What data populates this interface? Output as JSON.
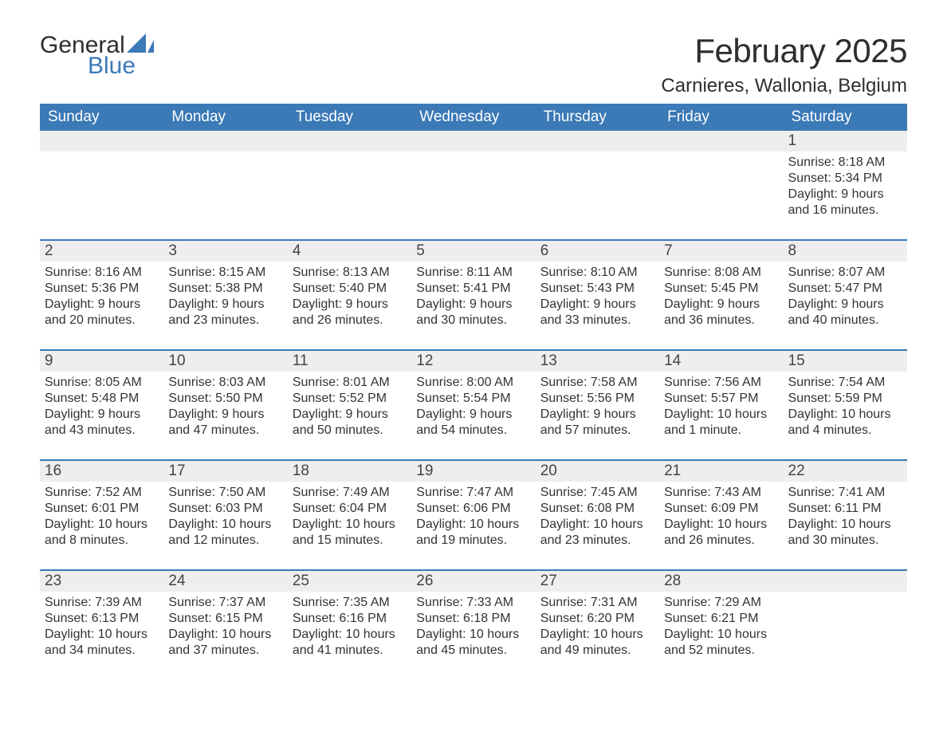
{
  "brand": {
    "word1": "General",
    "word2": "Blue",
    "accent_color": "#3b79b7",
    "text_color": "#2e2e2e"
  },
  "title": "February 2025",
  "location": "Carnieres, Wallonia, Belgium",
  "colors": {
    "header_bg": "#3b79b7",
    "header_text": "#ffffff",
    "daynum_bg": "#eeeeee",
    "row_divider": "#3b79b7",
    "body_text": "#333333",
    "page_bg": "#ffffff"
  },
  "weekdays": [
    "Sunday",
    "Monday",
    "Tuesday",
    "Wednesday",
    "Thursday",
    "Friday",
    "Saturday"
  ],
  "weeks": [
    [
      {
        "day": ""
      },
      {
        "day": ""
      },
      {
        "day": ""
      },
      {
        "day": ""
      },
      {
        "day": ""
      },
      {
        "day": ""
      },
      {
        "day": "1",
        "sunrise": "Sunrise: 8:18 AM",
        "sunset": "Sunset: 5:34 PM",
        "dl1": "Daylight: 9 hours",
        "dl2": "and 16 minutes."
      }
    ],
    [
      {
        "day": "2",
        "sunrise": "Sunrise: 8:16 AM",
        "sunset": "Sunset: 5:36 PM",
        "dl1": "Daylight: 9 hours",
        "dl2": "and 20 minutes."
      },
      {
        "day": "3",
        "sunrise": "Sunrise: 8:15 AM",
        "sunset": "Sunset: 5:38 PM",
        "dl1": "Daylight: 9 hours",
        "dl2": "and 23 minutes."
      },
      {
        "day": "4",
        "sunrise": "Sunrise: 8:13 AM",
        "sunset": "Sunset: 5:40 PM",
        "dl1": "Daylight: 9 hours",
        "dl2": "and 26 minutes."
      },
      {
        "day": "5",
        "sunrise": "Sunrise: 8:11 AM",
        "sunset": "Sunset: 5:41 PM",
        "dl1": "Daylight: 9 hours",
        "dl2": "and 30 minutes."
      },
      {
        "day": "6",
        "sunrise": "Sunrise: 8:10 AM",
        "sunset": "Sunset: 5:43 PM",
        "dl1": "Daylight: 9 hours",
        "dl2": "and 33 minutes."
      },
      {
        "day": "7",
        "sunrise": "Sunrise: 8:08 AM",
        "sunset": "Sunset: 5:45 PM",
        "dl1": "Daylight: 9 hours",
        "dl2": "and 36 minutes."
      },
      {
        "day": "8",
        "sunrise": "Sunrise: 8:07 AM",
        "sunset": "Sunset: 5:47 PM",
        "dl1": "Daylight: 9 hours",
        "dl2": "and 40 minutes."
      }
    ],
    [
      {
        "day": "9",
        "sunrise": "Sunrise: 8:05 AM",
        "sunset": "Sunset: 5:48 PM",
        "dl1": "Daylight: 9 hours",
        "dl2": "and 43 minutes."
      },
      {
        "day": "10",
        "sunrise": "Sunrise: 8:03 AM",
        "sunset": "Sunset: 5:50 PM",
        "dl1": "Daylight: 9 hours",
        "dl2": "and 47 minutes."
      },
      {
        "day": "11",
        "sunrise": "Sunrise: 8:01 AM",
        "sunset": "Sunset: 5:52 PM",
        "dl1": "Daylight: 9 hours",
        "dl2": "and 50 minutes."
      },
      {
        "day": "12",
        "sunrise": "Sunrise: 8:00 AM",
        "sunset": "Sunset: 5:54 PM",
        "dl1": "Daylight: 9 hours",
        "dl2": "and 54 minutes."
      },
      {
        "day": "13",
        "sunrise": "Sunrise: 7:58 AM",
        "sunset": "Sunset: 5:56 PM",
        "dl1": "Daylight: 9 hours",
        "dl2": "and 57 minutes."
      },
      {
        "day": "14",
        "sunrise": "Sunrise: 7:56 AM",
        "sunset": "Sunset: 5:57 PM",
        "dl1": "Daylight: 10 hours",
        "dl2": "and 1 minute."
      },
      {
        "day": "15",
        "sunrise": "Sunrise: 7:54 AM",
        "sunset": "Sunset: 5:59 PM",
        "dl1": "Daylight: 10 hours",
        "dl2": "and 4 minutes."
      }
    ],
    [
      {
        "day": "16",
        "sunrise": "Sunrise: 7:52 AM",
        "sunset": "Sunset: 6:01 PM",
        "dl1": "Daylight: 10 hours",
        "dl2": "and 8 minutes."
      },
      {
        "day": "17",
        "sunrise": "Sunrise: 7:50 AM",
        "sunset": "Sunset: 6:03 PM",
        "dl1": "Daylight: 10 hours",
        "dl2": "and 12 minutes."
      },
      {
        "day": "18",
        "sunrise": "Sunrise: 7:49 AM",
        "sunset": "Sunset: 6:04 PM",
        "dl1": "Daylight: 10 hours",
        "dl2": "and 15 minutes."
      },
      {
        "day": "19",
        "sunrise": "Sunrise: 7:47 AM",
        "sunset": "Sunset: 6:06 PM",
        "dl1": "Daylight: 10 hours",
        "dl2": "and 19 minutes."
      },
      {
        "day": "20",
        "sunrise": "Sunrise: 7:45 AM",
        "sunset": "Sunset: 6:08 PM",
        "dl1": "Daylight: 10 hours",
        "dl2": "and 23 minutes."
      },
      {
        "day": "21",
        "sunrise": "Sunrise: 7:43 AM",
        "sunset": "Sunset: 6:09 PM",
        "dl1": "Daylight: 10 hours",
        "dl2": "and 26 minutes."
      },
      {
        "day": "22",
        "sunrise": "Sunrise: 7:41 AM",
        "sunset": "Sunset: 6:11 PM",
        "dl1": "Daylight: 10 hours",
        "dl2": "and 30 minutes."
      }
    ],
    [
      {
        "day": "23",
        "sunrise": "Sunrise: 7:39 AM",
        "sunset": "Sunset: 6:13 PM",
        "dl1": "Daylight: 10 hours",
        "dl2": "and 34 minutes."
      },
      {
        "day": "24",
        "sunrise": "Sunrise: 7:37 AM",
        "sunset": "Sunset: 6:15 PM",
        "dl1": "Daylight: 10 hours",
        "dl2": "and 37 minutes."
      },
      {
        "day": "25",
        "sunrise": "Sunrise: 7:35 AM",
        "sunset": "Sunset: 6:16 PM",
        "dl1": "Daylight: 10 hours",
        "dl2": "and 41 minutes."
      },
      {
        "day": "26",
        "sunrise": "Sunrise: 7:33 AM",
        "sunset": "Sunset: 6:18 PM",
        "dl1": "Daylight: 10 hours",
        "dl2": "and 45 minutes."
      },
      {
        "day": "27",
        "sunrise": "Sunrise: 7:31 AM",
        "sunset": "Sunset: 6:20 PM",
        "dl1": "Daylight: 10 hours",
        "dl2": "and 49 minutes."
      },
      {
        "day": "28",
        "sunrise": "Sunrise: 7:29 AM",
        "sunset": "Sunset: 6:21 PM",
        "dl1": "Daylight: 10 hours",
        "dl2": "and 52 minutes."
      },
      {
        "day": ""
      }
    ]
  ]
}
